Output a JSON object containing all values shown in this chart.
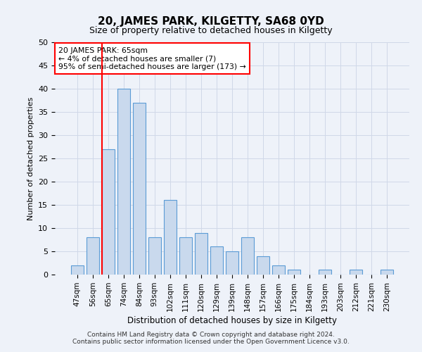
{
  "title": "20, JAMES PARK, KILGETTY, SA68 0YD",
  "subtitle": "Size of property relative to detached houses in Kilgetty",
  "xlabel": "Distribution of detached houses by size in Kilgetty",
  "ylabel": "Number of detached properties",
  "categories": [
    "47sqm",
    "56sqm",
    "65sqm",
    "74sqm",
    "84sqm",
    "93sqm",
    "102sqm",
    "111sqm",
    "120sqm",
    "129sqm",
    "139sqm",
    "148sqm",
    "157sqm",
    "166sqm",
    "175sqm",
    "184sqm",
    "193sqm",
    "203sqm",
    "212sqm",
    "221sqm",
    "230sqm"
  ],
  "values": [
    2,
    8,
    27,
    40,
    37,
    8,
    16,
    8,
    9,
    6,
    5,
    8,
    4,
    2,
    1,
    0,
    1,
    0,
    1,
    0,
    1
  ],
  "bar_color": "#c9d9ed",
  "bar_edge_color": "#5b9bd5",
  "highlight_bar_index": 2,
  "annotation_line1": "20 JAMES PARK: 65sqm",
  "annotation_line2": "← 4% of detached houses are smaller (7)",
  "annotation_line3": "95% of semi-detached houses are larger (173) →",
  "annotation_box_color": "white",
  "annotation_box_edge_color": "red",
  "grid_color": "#d0d8e8",
  "ylim": [
    0,
    50
  ],
  "yticks": [
    0,
    5,
    10,
    15,
    20,
    25,
    30,
    35,
    40,
    45,
    50
  ],
  "footer_line1": "Contains HM Land Registry data © Crown copyright and database right 2024.",
  "footer_line2": "Contains public sector information licensed under the Open Government Licence v3.0.",
  "bg_color": "#eef2f9"
}
